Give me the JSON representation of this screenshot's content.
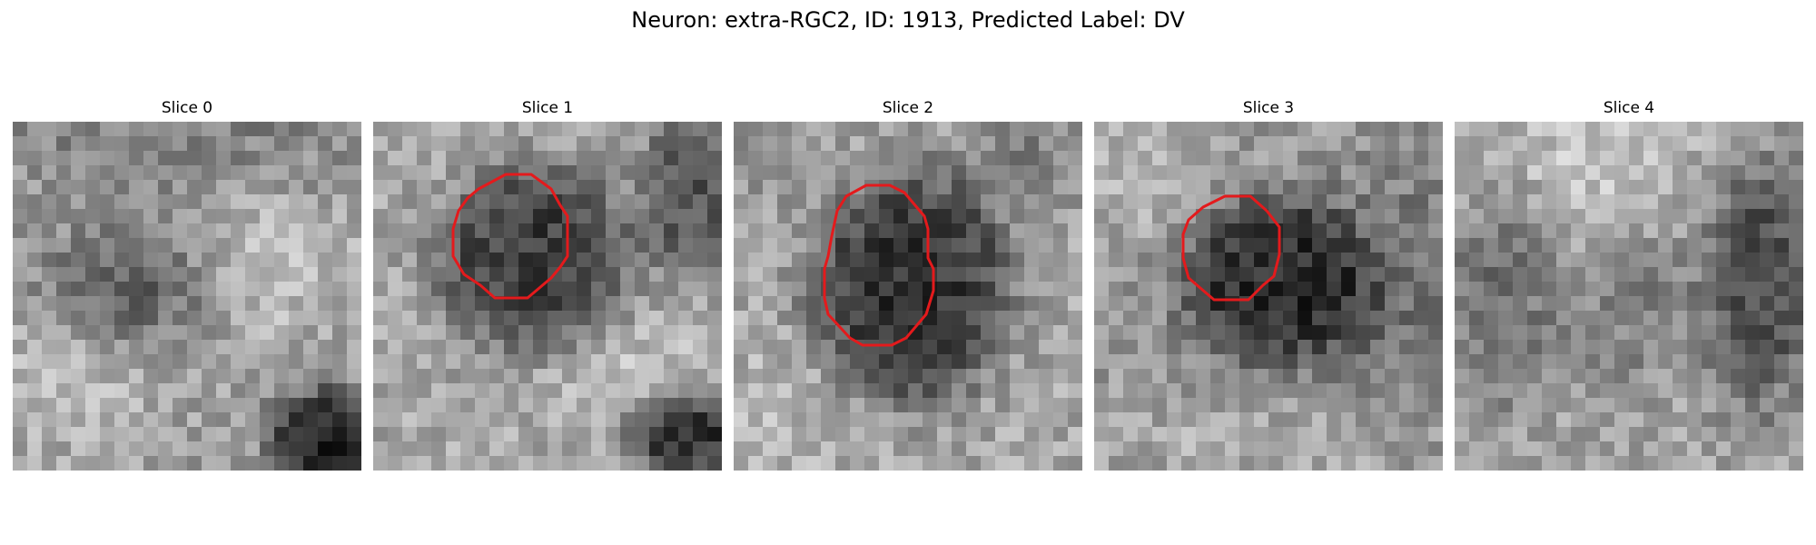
{
  "figure": {
    "title": "Neuron: extra-RGC2, ID: 1913, Predicted Label: DV"
  },
  "colors": {
    "contour": "#e41a1c",
    "colormap": "gray"
  },
  "panels": [
    {
      "title": "Slice 0",
      "has_contour": false
    },
    {
      "title": "Slice 1",
      "has_contour": true
    },
    {
      "title": "Slice 2",
      "has_contour": true
    },
    {
      "title": "Slice 3",
      "has_contour": true
    },
    {
      "title": "Slice 4",
      "has_contour": false
    }
  ]
}
